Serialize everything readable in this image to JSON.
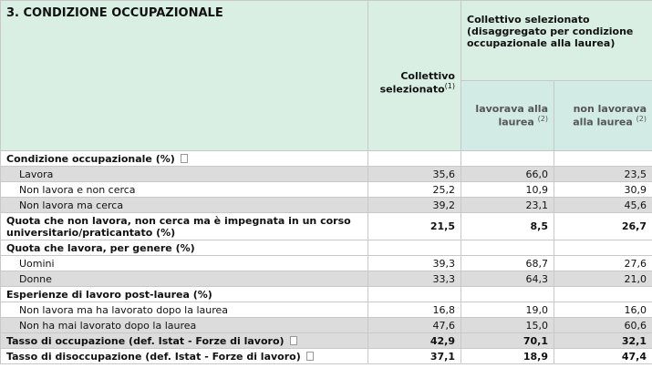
{
  "header": {
    "title": "3. CONDIZIONE OCCUPAZIONALE",
    "col1": "Collettivo selezionato",
    "col1_note": "(1)",
    "group": "Collettivo selezionato (disaggregato per condizione occupazionale alla laurea)",
    "sub": [
      {
        "label": "lavorava alla laurea",
        "note": "(2)"
      },
      {
        "label": "non lavorava alla laurea",
        "note": "(2)"
      }
    ]
  },
  "table": {
    "rows": [
      {
        "kind": "section",
        "label": "Condizione occupazionale (%)",
        "icon": true
      },
      {
        "kind": "item",
        "label": "Lavora",
        "values": [
          "35,6",
          "66,0",
          "23,5"
        ],
        "shaded": true
      },
      {
        "kind": "item",
        "label": "Non lavora e non cerca",
        "values": [
          "25,2",
          "10,9",
          "30,9"
        ]
      },
      {
        "kind": "item",
        "label": "Non lavora ma cerca",
        "values": [
          "39,2",
          "23,1",
          "45,6"
        ],
        "shaded": true
      },
      {
        "kind": "total",
        "label": "Quota che non lavora, non cerca ma è impegnata in un corso universitario/praticantato (%)",
        "values": [
          "21,5",
          "8,5",
          "26,7"
        ],
        "tall": true
      },
      {
        "kind": "section",
        "label": "Quota che lavora, per genere (%)"
      },
      {
        "kind": "item",
        "label": "Uomini",
        "values": [
          "39,3",
          "68,7",
          "27,6"
        ]
      },
      {
        "kind": "item",
        "label": "Donne",
        "values": [
          "33,3",
          "64,3",
          "21,0"
        ],
        "shaded": true
      },
      {
        "kind": "section",
        "label": "Esperienze di lavoro post-laurea (%)"
      },
      {
        "kind": "item",
        "label": "Non lavora ma ha lavorato dopo la laurea",
        "values": [
          "16,8",
          "19,0",
          "16,0"
        ]
      },
      {
        "kind": "item",
        "label": "Non ha mai lavorato dopo la laurea",
        "values": [
          "47,6",
          "15,0",
          "60,6"
        ],
        "shaded": true
      },
      {
        "kind": "total",
        "label": "Tasso di occupazione (def. Istat - Forze di lavoro)",
        "values": [
          "42,9",
          "70,1",
          "32,1"
        ],
        "icon": true,
        "shaded": true
      },
      {
        "kind": "total",
        "label": "Tasso di disoccupazione (def. Istat - Forze di lavoro)",
        "values": [
          "37,1",
          "18,9",
          "47,4"
        ],
        "icon": true
      }
    ]
  }
}
